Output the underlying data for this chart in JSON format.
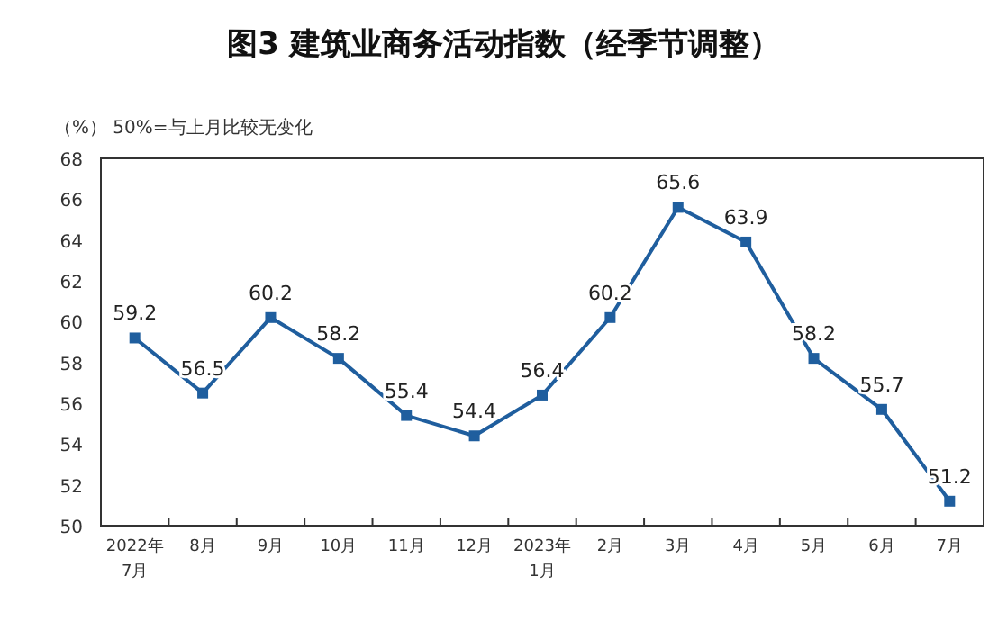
{
  "chart_data": {
    "type": "line",
    "title": "图3  建筑业商务活动指数（经季节调整）",
    "annotations": [
      "（%） 50%=与上月比较无变化"
    ],
    "categories": [
      "2022年\n7月",
      "8月",
      "9月",
      "10月",
      "11月",
      "12月",
      "2023年\n1月",
      "2月",
      "3月",
      "4月",
      "5月",
      "6月",
      "7月"
    ],
    "series": [
      {
        "color": "#1f5e9e",
        "values": [
          59.2,
          56.5,
          60.2,
          58.2,
          55.4,
          54.4,
          56.4,
          60.2,
          65.6,
          63.9,
          58.2,
          55.7,
          51.2
        ]
      }
    ],
    "ylim": [
      50,
      68
    ],
    "yticks": [
      50,
      52,
      54,
      56,
      58,
      60,
      62,
      64,
      66,
      68
    ],
    "data_labels": true,
    "marker": "square",
    "grid": false
  }
}
